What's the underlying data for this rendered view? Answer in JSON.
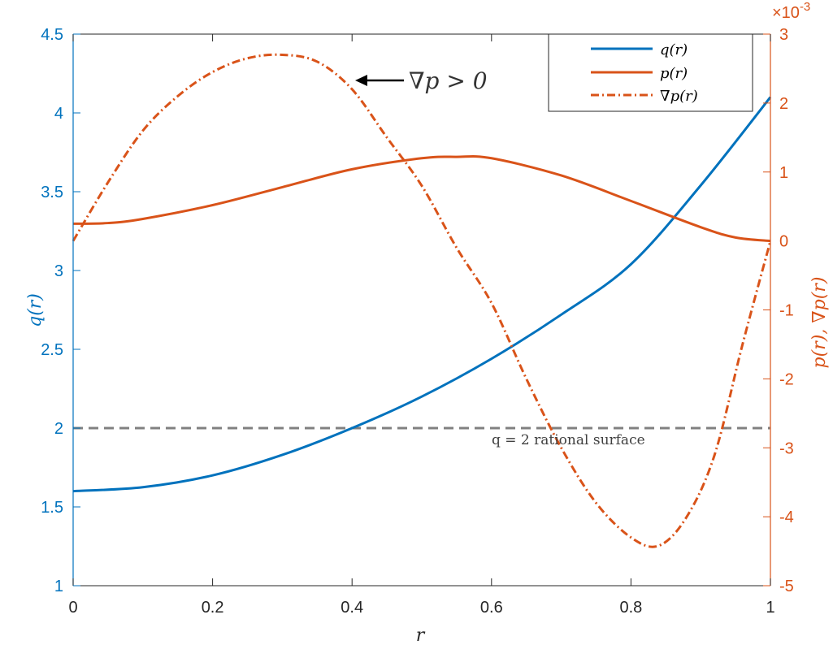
{
  "chart_data": {
    "type": "line",
    "xlabel": "r",
    "ylabel_left": "q(r)",
    "ylabel_right": "p(r), ∇p(r)",
    "right_axis_multiplier": "×10-3",
    "xlim": [
      0,
      1
    ],
    "ylim_left": [
      1,
      4.5
    ],
    "ylim_right": [
      -5,
      3
    ],
    "x_ticks": [
      0,
      0.2,
      0.4,
      0.6,
      0.8,
      1
    ],
    "x_tick_labels": [
      "0",
      "0.2",
      "0.4",
      "0.6",
      "0.8",
      "1"
    ],
    "y_left_ticks": [
      1,
      1.5,
      2,
      2.5,
      3,
      3.5,
      4,
      4.5
    ],
    "y_left_tick_labels": [
      "1",
      "1.5",
      "2",
      "2.5",
      "3",
      "3.5",
      "4",
      "4.5"
    ],
    "y_right_ticks": [
      -5,
      -4,
      -3,
      -2,
      -1,
      0,
      1,
      2,
      3
    ],
    "y_right_tick_labels": [
      "-5",
      "-4",
      "-3",
      "-2",
      "-1",
      "0",
      "1",
      "2",
      "3"
    ],
    "grid": false,
    "legend_position": "top-right",
    "colors": {
      "q": "#0072BD",
      "p": "#D95319",
      "ref": "#808080",
      "axis_left": "#0072BD",
      "axis_right": "#D95319"
    },
    "series": [
      {
        "name": "q(r)",
        "axis": "left",
        "style": "solid",
        "x": [
          0,
          0.1,
          0.2,
          0.3,
          0.4,
          0.5,
          0.6,
          0.7,
          0.8,
          0.9,
          1.0
        ],
        "y": [
          1.6,
          1.625,
          1.7,
          1.83,
          2.0,
          2.2,
          2.44,
          2.72,
          3.04,
          3.54,
          4.1
        ]
      },
      {
        "name": "p(r)",
        "axis": "right",
        "style": "solid",
        "x": [
          0,
          0.05,
          0.1,
          0.2,
          0.3,
          0.4,
          0.5,
          0.55,
          0.6,
          0.7,
          0.8,
          0.9,
          0.95,
          1.0
        ],
        "y": [
          0.25,
          0.26,
          0.32,
          0.52,
          0.78,
          1.04,
          1.2,
          1.22,
          1.2,
          0.95,
          0.58,
          0.2,
          0.05,
          0.0
        ]
      },
      {
        "name": "∇p(r)",
        "axis": "right",
        "style": "dash-dot",
        "x": [
          0,
          0.05,
          0.1,
          0.15,
          0.2,
          0.25,
          0.3,
          0.35,
          0.4,
          0.45,
          0.5,
          0.55,
          0.6,
          0.65,
          0.7,
          0.75,
          0.8,
          0.84,
          0.88,
          0.92,
          0.96,
          1.0
        ],
        "y": [
          0.0,
          0.85,
          1.6,
          2.1,
          2.45,
          2.65,
          2.7,
          2.6,
          2.2,
          1.5,
          0.8,
          -0.1,
          -0.9,
          -2.0,
          -3.0,
          -3.8,
          -4.3,
          -4.42,
          -4.0,
          -3.1,
          -1.5,
          0.0
        ]
      }
    ],
    "reference_line": {
      "axis": "left",
      "y": 2,
      "label": "q = 2 rational surface"
    },
    "annotation": {
      "text": "∇p > 0",
      "arrow_to": {
        "x": 0.405,
        "y_right": 2.3
      }
    }
  }
}
